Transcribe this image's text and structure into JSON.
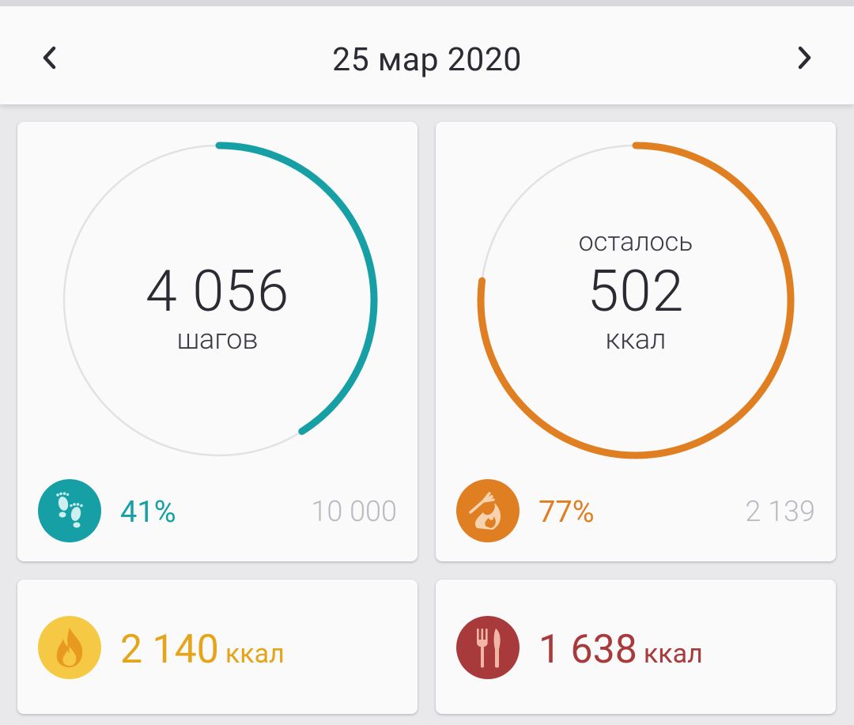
{
  "header": {
    "date": "25 мар 2020"
  },
  "steps_card": {
    "value": "4 056",
    "unit": "шагов",
    "percent": "41%",
    "goal": "10 000",
    "progress": 0.41,
    "color": "#16a0a6",
    "icon": "footsteps-icon"
  },
  "calories_card": {
    "top_label": "осталось",
    "value": "502",
    "unit": "ккал",
    "percent": "77%",
    "goal": "2 139",
    "progress": 0.77,
    "color": "#e07f22",
    "icon": "fork-flame-icon"
  },
  "burned_card": {
    "value": "2 140",
    "unit": "ккал",
    "color": "#e5a51b",
    "icon": "flame-icon"
  },
  "eaten_card": {
    "value": "1 638",
    "unit": "ккал",
    "color": "#a83a3c",
    "icon": "fork-knife-icon"
  }
}
